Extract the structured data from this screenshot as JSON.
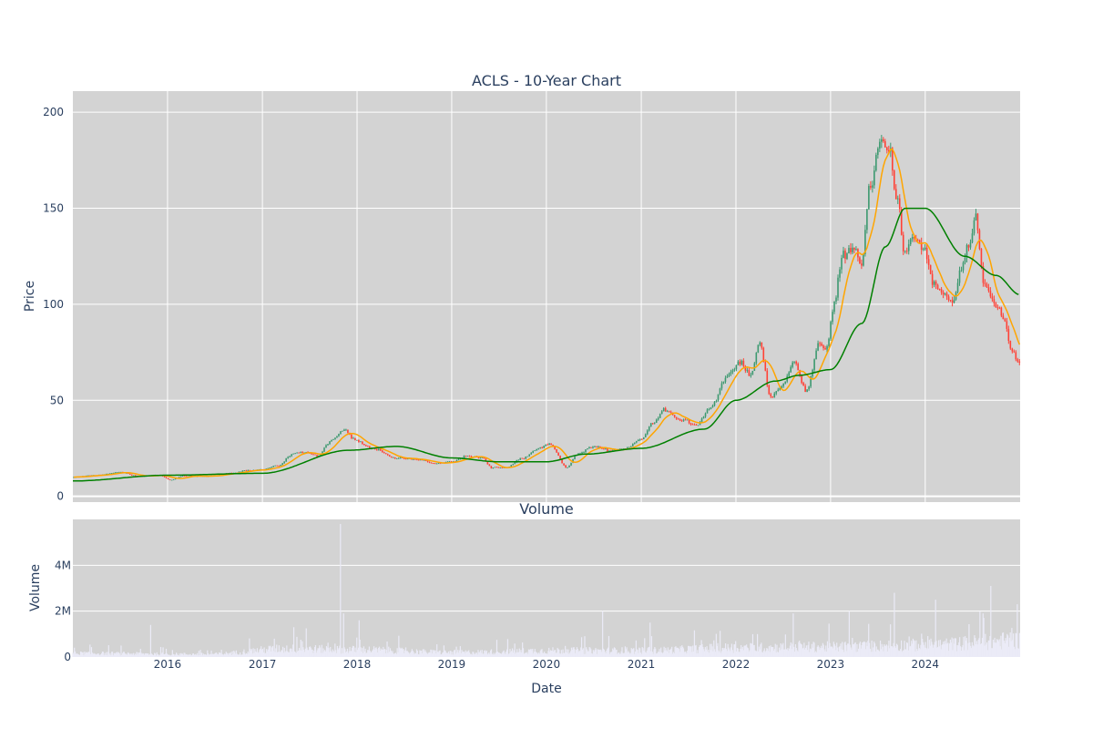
{
  "chart_data": [
    {
      "type": "candlestick",
      "title": "ACLS - 10-Year Chart",
      "ylabel": "Price",
      "xlabel": "",
      "x_range": [
        "2015-01-01",
        "2024-12-31"
      ],
      "ylim": [
        -3,
        211
      ],
      "yticks": [
        0,
        50,
        100,
        150,
        200
      ],
      "xticks": [
        "2016-01-01",
        "2017-01-01",
        "2018-01-01",
        "2019-01-01",
        "2020-01-01",
        "2021-01-01",
        "2022-01-01",
        "2023-01-01",
        "2024-01-01"
      ],
      "grid": true,
      "legend": "none",
      "colors": {
        "increasing": "#3d9970",
        "decreasing": "#ff4136",
        "ma_short": "#ffa500",
        "ma_long": "#008000",
        "background": "#d3d3d3"
      },
      "close_anchors": [
        [
          "2015-01-02",
          10
        ],
        [
          "2015-04-01",
          11
        ],
        [
          "2015-07-01",
          12.5
        ],
        [
          "2015-09-15",
          10.5
        ],
        [
          "2015-12-01",
          11
        ],
        [
          "2016-01-15",
          8.5
        ],
        [
          "2016-03-01",
          10.5
        ],
        [
          "2016-06-01",
          10.5
        ],
        [
          "2016-09-01",
          12
        ],
        [
          "2016-11-01",
          13.5
        ],
        [
          "2017-01-01",
          14
        ],
        [
          "2017-03-01",
          16
        ],
        [
          "2017-05-01",
          22
        ],
        [
          "2017-06-15",
          23
        ],
        [
          "2017-08-01",
          21
        ],
        [
          "2017-10-01",
          30
        ],
        [
          "2017-11-15",
          35
        ],
        [
          "2017-12-15",
          30
        ],
        [
          "2018-03-01",
          25
        ],
        [
          "2018-06-01",
          20
        ],
        [
          "2018-09-01",
          19
        ],
        [
          "2018-11-01",
          17
        ],
        [
          "2019-01-01",
          18
        ],
        [
          "2019-03-01",
          21
        ],
        [
          "2019-05-01",
          20
        ],
        [
          "2019-06-01",
          15
        ],
        [
          "2019-08-01",
          15
        ],
        [
          "2019-10-01",
          20
        ],
        [
          "2019-12-01",
          25
        ],
        [
          "2020-01-15",
          27
        ],
        [
          "2020-03-20",
          15
        ],
        [
          "2020-05-01",
          22
        ],
        [
          "2020-07-01",
          26
        ],
        [
          "2020-09-01",
          24
        ],
        [
          "2020-11-01",
          25
        ],
        [
          "2021-01-01",
          30
        ],
        [
          "2021-02-15",
          38
        ],
        [
          "2021-04-01",
          45
        ],
        [
          "2021-06-01",
          40
        ],
        [
          "2021-08-01",
          37
        ],
        [
          "2021-10-01",
          47
        ],
        [
          "2021-11-15",
          60
        ],
        [
          "2021-12-15",
          65
        ],
        [
          "2022-01-15",
          70
        ],
        [
          "2022-03-01",
          63
        ],
        [
          "2022-04-01",
          80
        ],
        [
          "2022-05-15",
          52
        ],
        [
          "2022-07-01",
          58
        ],
        [
          "2022-08-15",
          70
        ],
        [
          "2022-10-01",
          55
        ],
        [
          "2022-11-15",
          78
        ],
        [
          "2022-12-15",
          78
        ],
        [
          "2023-01-15",
          100
        ],
        [
          "2023-02-15",
          125
        ],
        [
          "2023-04-01",
          130
        ],
        [
          "2023-05-01",
          120
        ],
        [
          "2023-06-01",
          160
        ],
        [
          "2023-07-15",
          185
        ],
        [
          "2023-08-15",
          180
        ],
        [
          "2023-09-15",
          155
        ],
        [
          "2023-10-15",
          125
        ],
        [
          "2023-11-15",
          135
        ],
        [
          "2024-01-01",
          128
        ],
        [
          "2024-02-01",
          110
        ],
        [
          "2024-03-15",
          105
        ],
        [
          "2024-04-15",
          100
        ],
        [
          "2024-05-15",
          115
        ],
        [
          "2024-06-15",
          130
        ],
        [
          "2024-07-15",
          145
        ],
        [
          "2024-08-15",
          110
        ],
        [
          "2024-10-01",
          100
        ],
        [
          "2024-11-01",
          90
        ],
        [
          "2024-12-01",
          75
        ],
        [
          "2024-12-31",
          70
        ]
      ],
      "ma_long_anchors": [
        [
          "2015-01-02",
          8
        ],
        [
          "2016-01-01",
          11
        ],
        [
          "2017-01-01",
          12
        ],
        [
          "2017-12-01",
          24
        ],
        [
          "2018-06-01",
          26
        ],
        [
          "2019-01-01",
          20
        ],
        [
          "2019-07-01",
          18
        ],
        [
          "2020-01-01",
          18
        ],
        [
          "2020-06-01",
          22
        ],
        [
          "2021-01-01",
          25
        ],
        [
          "2021-09-01",
          35
        ],
        [
          "2022-01-01",
          50
        ],
        [
          "2022-06-01",
          60
        ],
        [
          "2022-09-01",
          63
        ],
        [
          "2023-01-01",
          66
        ],
        [
          "2023-05-01",
          90
        ],
        [
          "2023-08-01",
          130
        ],
        [
          "2023-10-15",
          150
        ],
        [
          "2024-01-01",
          150
        ],
        [
          "2024-06-01",
          125
        ],
        [
          "2024-10-01",
          115
        ],
        [
          "2024-12-31",
          105
        ]
      ]
    },
    {
      "type": "bar",
      "title": "Volume",
      "xlabel": "Date",
      "ylabel": "Volume",
      "ylim": [
        0,
        6000000
      ],
      "yticks": [
        0,
        2000000,
        4000000
      ],
      "ytick_labels": [
        "0",
        "2M",
        "4M"
      ],
      "xtick_labels": [
        "2016",
        "2017",
        "2018",
        "2019",
        "2020",
        "2021",
        "2022",
        "2023",
        "2024"
      ],
      "grid": true,
      "colors": {
        "bar": "#ebebf7",
        "background": "#d3d3d3"
      },
      "volume_base_anchors": [
        [
          "2015-01-02",
          200000
        ],
        [
          "2016-06-01",
          150000
        ],
        [
          "2017-04-01",
          450000
        ],
        [
          "2018-01-01",
          400000
        ],
        [
          "2019-01-01",
          250000
        ],
        [
          "2020-03-01",
          350000
        ],
        [
          "2021-01-01",
          350000
        ],
        [
          "2022-01-01",
          500000
        ],
        [
          "2023-01-01",
          550000
        ],
        [
          "2024-01-01",
          650000
        ],
        [
          "2024-12-31",
          900000
        ]
      ],
      "volume_spikes": [
        [
          "2015-10-28",
          1400000
        ],
        [
          "2017-05-01",
          1300000
        ],
        [
          "2017-06-20",
          1250000
        ],
        [
          "2017-10-28",
          5800000
        ],
        [
          "2017-11-10",
          1900000
        ],
        [
          "2018-01-10",
          1600000
        ],
        [
          "2020-08-05",
          2000000
        ],
        [
          "2021-02-05",
          1500000
        ],
        [
          "2022-08-10",
          1900000
        ],
        [
          "2023-03-15",
          2000000
        ],
        [
          "2023-09-05",
          2800000
        ],
        [
          "2024-02-10",
          2500000
        ],
        [
          "2024-08-10",
          1900000
        ],
        [
          "2024-09-10",
          3100000
        ],
        [
          "2024-12-20",
          2300000
        ]
      ]
    }
  ]
}
